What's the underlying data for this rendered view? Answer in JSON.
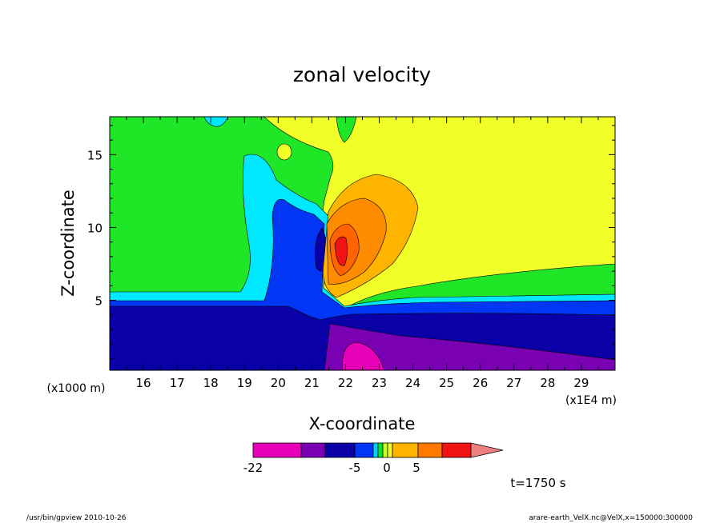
{
  "footer": {
    "left": "/usr/bin/gpview   2010-10-26",
    "right": "arare-earth_VelX.nc@VelX,x=150000:300000"
  },
  "chart_data": {
    "type": "heatmap",
    "title": "zonal velocity",
    "xlabel": "X-coordinate",
    "ylabel": "Z-coordinate",
    "x_unit_left": "(x1000 m)",
    "x_unit_right": "(x1E4 m)",
    "x_ticks": [
      "16",
      "17",
      "18",
      "19",
      "20",
      "21",
      "22",
      "23",
      "24",
      "25",
      "26",
      "27",
      "28",
      "29"
    ],
    "y_ticks": [
      "5",
      "10",
      "15"
    ],
    "xlim": [
      15.0,
      30.0
    ],
    "ylim": [
      0.2,
      17.6
    ],
    "time_label": "t=1750 s",
    "colorbar": {
      "labels": [
        "-22",
        "-5",
        "0",
        "5"
      ],
      "colors": [
        "#e600b8",
        "#7a00b4",
        "#0a00a8",
        "#0036f4",
        "#00d0ff",
        "#00e632",
        "#c8ff1e",
        "#f0ff28",
        "#ffb400",
        "#ff7800",
        "#f01414",
        "#f08080"
      ]
    },
    "palette": {
      "magenta": "#e600b8",
      "purple": "#7a00b4",
      "navy": "#0a00a8",
      "blue": "#0036f4",
      "cyan": "#00e8ff",
      "green": "#20e628",
      "yellow": "#f0ff28",
      "lightorange": "#ffb400",
      "orange": "#ff8c00",
      "darkorange": "#ff6400",
      "red": "#f01414"
    }
  }
}
